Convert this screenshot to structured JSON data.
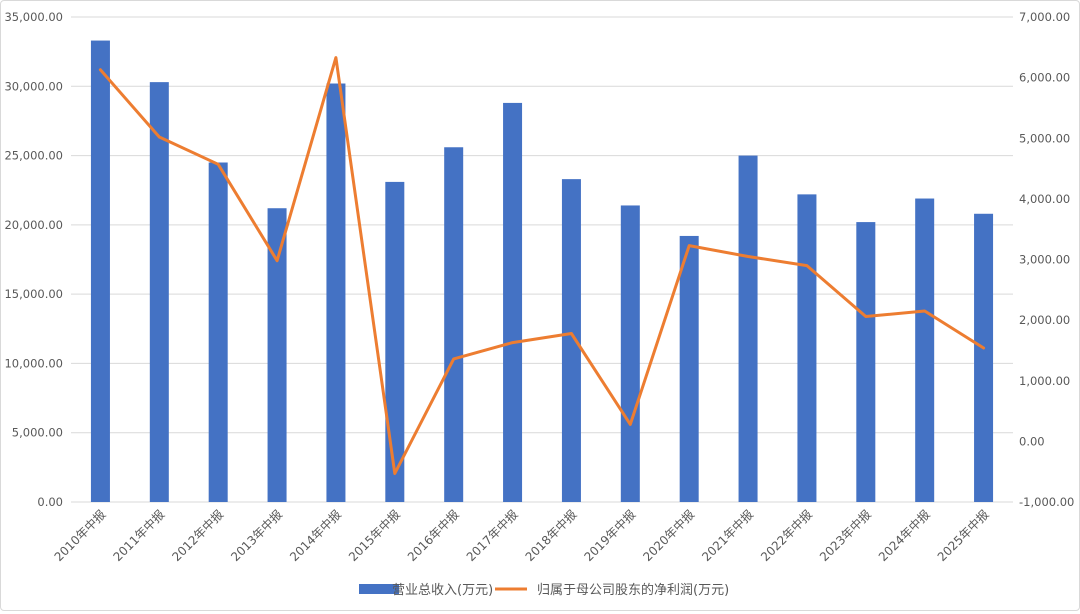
{
  "chart_data": {
    "type": "bar",
    "categories": [
      "2010年中报",
      "2011年中报",
      "2012年中报",
      "2013年中报",
      "2014年中报",
      "2015年中报",
      "2016年中报",
      "2017年中报",
      "2018年中报",
      "2019年中报",
      "2020年中报",
      "2021年中报",
      "2022年中报",
      "2023年中报",
      "2024年中报",
      "2025年中报"
    ],
    "series": [
      {
        "name": "营业总收入(万元)",
        "type": "bar",
        "axis": "left",
        "color": "#4472C4",
        "values": [
          33300,
          30300,
          24500,
          21200,
          30200,
          23100,
          25600,
          28800,
          23300,
          21400,
          19200,
          25000,
          22200,
          20200,
          21900,
          20800
        ]
      },
      {
        "name": "归属于母公司股东的净利润(万元)",
        "type": "line",
        "axis": "right",
        "color": "#ED7D31",
        "values": [
          6130,
          5020,
          4570,
          2980,
          6330,
          -530,
          1360,
          1630,
          1780,
          280,
          3230,
          3050,
          2900,
          2060,
          2150,
          1540
        ]
      }
    ],
    "y_left": {
      "ylim": [
        0,
        35000
      ],
      "ticks": [
        "0.00",
        "5,000.00",
        "10,000.00",
        "15,000.00",
        "20,000.00",
        "25,000.00",
        "30,000.00",
        "35,000.00"
      ]
    },
    "y_right": {
      "ylim": [
        -1000,
        7000
      ],
      "ticks": [
        "-1,000.00",
        "0.00",
        "1,000.00",
        "2,000.00",
        "3,000.00",
        "4,000.00",
        "5,000.00",
        "6,000.00",
        "7,000.00"
      ]
    },
    "grid": true,
    "legend_position": "bottom"
  }
}
